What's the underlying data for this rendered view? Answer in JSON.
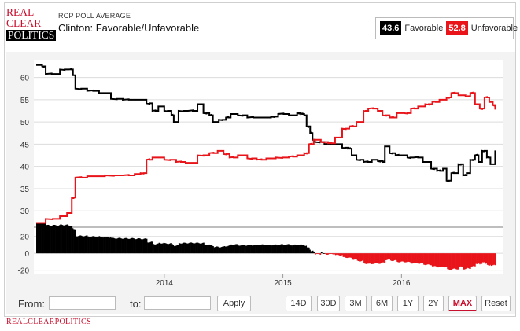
{
  "logo": {
    "line1": "REAL",
    "line2": "CLEAR",
    "line3": "POLITICS"
  },
  "header": {
    "kicker": "RCP POLL AVERAGE",
    "title": "Clinton: Favorable/Unfavorable"
  },
  "legend": {
    "favorable": {
      "value": "43.6",
      "label": "Favorable",
      "color": "#000000"
    },
    "unfavorable": {
      "value": "52.8",
      "label": "Unfavorable",
      "color": "#e8141a"
    }
  },
  "controls": {
    "from_label": "From:",
    "to_label": "to:",
    "apply_label": "Apply",
    "ranges": [
      "14D",
      "30D",
      "3M",
      "6M",
      "1Y",
      "2Y",
      "MAX",
      "Reset"
    ],
    "active_range": "MAX"
  },
  "footer": {
    "text": "REALCLEARPOLITICS"
  },
  "chart_data": {
    "type": "line",
    "x_ticks": [
      "2014",
      "2015",
      "2016"
    ],
    "main_axis": {
      "ticks": [
        30,
        35,
        40,
        45,
        50,
        55,
        60
      ],
      "ylim": [
        26.5,
        64
      ]
    },
    "spread_axis": {
      "ticks": [
        20,
        0,
        -20
      ],
      "ylim": [
        -25,
        30
      ]
    },
    "grid": true,
    "series": [
      {
        "name": "Favorable",
        "color": "#000000",
        "points": [
          [
            2012.92,
            62.8
          ],
          [
            2012.97,
            62.5
          ],
          [
            2013.0,
            60.8
          ],
          [
            2013.1,
            60.8
          ],
          [
            2013.12,
            61.8
          ],
          [
            2013.2,
            61.8
          ],
          [
            2013.23,
            60.5
          ],
          [
            2013.25,
            57.5
          ],
          [
            2013.35,
            57.0
          ],
          [
            2013.45,
            56.5
          ],
          [
            2013.55,
            55.2
          ],
          [
            2013.65,
            55.0
          ],
          [
            2013.75,
            55.0
          ],
          [
            2013.85,
            54.2
          ],
          [
            2013.9,
            52.5
          ],
          [
            2013.95,
            53.5
          ],
          [
            2014.0,
            52.5
          ],
          [
            2014.06,
            51.5
          ],
          [
            2014.08,
            50.0
          ],
          [
            2014.12,
            52.5
          ],
          [
            2014.2,
            52.5
          ],
          [
            2014.28,
            54.0
          ],
          [
            2014.33,
            52.0
          ],
          [
            2014.38,
            51.5
          ],
          [
            2014.41,
            50.0
          ],
          [
            2014.46,
            50.5
          ],
          [
            2014.52,
            51.0
          ],
          [
            2014.56,
            51.8
          ],
          [
            2014.62,
            51.5
          ],
          [
            2014.7,
            51.0
          ],
          [
            2014.8,
            51.0
          ],
          [
            2014.9,
            51.2
          ],
          [
            2014.96,
            51.8
          ],
          [
            2015.05,
            51.5
          ],
          [
            2015.12,
            52.0
          ],
          [
            2015.15,
            51.8
          ],
          [
            2015.18,
            51.5
          ],
          [
            2015.2,
            49.0
          ],
          [
            2015.23,
            47.5
          ],
          [
            2015.25,
            46.0
          ],
          [
            2015.27,
            45.5
          ],
          [
            2015.35,
            45.0
          ],
          [
            2015.45,
            45.0
          ],
          [
            2015.5,
            44.2
          ],
          [
            2015.55,
            44.0
          ],
          [
            2015.58,
            42.5
          ],
          [
            2015.62,
            41.5
          ],
          [
            2015.68,
            41.0
          ],
          [
            2015.75,
            41.5
          ],
          [
            2015.8,
            41.2
          ],
          [
            2015.84,
            41.0
          ],
          [
            2015.86,
            44.5
          ],
          [
            2015.9,
            43.0
          ],
          [
            2015.95,
            42.5
          ],
          [
            2016.0,
            42.5
          ],
          [
            2016.05,
            42.0
          ],
          [
            2016.1,
            42.0
          ],
          [
            2016.18,
            41.0
          ],
          [
            2016.25,
            39.5
          ],
          [
            2016.3,
            39.0
          ],
          [
            2016.35,
            39.5
          ],
          [
            2016.38,
            36.8
          ],
          [
            2016.42,
            38.5
          ],
          [
            2016.46,
            38.5
          ],
          [
            2016.48,
            40.5
          ],
          [
            2016.52,
            38.0
          ],
          [
            2016.55,
            38.5
          ],
          [
            2016.58,
            41.5
          ],
          [
            2016.62,
            42.5
          ],
          [
            2016.65,
            41.0
          ],
          [
            2016.68,
            43.5
          ],
          [
            2016.72,
            42.0
          ],
          [
            2016.75,
            40.5
          ],
          [
            2016.79,
            43.6
          ]
        ]
      },
      {
        "name": "Unfavorable",
        "color": "#e8141a",
        "points": [
          [
            2012.92,
            27.3
          ],
          [
            2013.0,
            28.2
          ],
          [
            2013.12,
            28.8
          ],
          [
            2013.18,
            29.5
          ],
          [
            2013.22,
            33.0
          ],
          [
            2013.25,
            37.5
          ],
          [
            2013.35,
            37.8
          ],
          [
            2013.5,
            38.0
          ],
          [
            2013.65,
            38.0
          ],
          [
            2013.75,
            38.3
          ],
          [
            2013.8,
            38.5
          ],
          [
            2013.85,
            41.5
          ],
          [
            2013.9,
            42.0
          ],
          [
            2014.0,
            41.5
          ],
          [
            2014.1,
            41.0
          ],
          [
            2014.18,
            40.8
          ],
          [
            2014.28,
            42.5
          ],
          [
            2014.38,
            43.0
          ],
          [
            2014.45,
            43.5
          ],
          [
            2014.5,
            42.8
          ],
          [
            2014.55,
            42.0
          ],
          [
            2014.62,
            42.5
          ],
          [
            2014.7,
            41.8
          ],
          [
            2014.78,
            41.5
          ],
          [
            2014.86,
            41.8
          ],
          [
            2014.94,
            42.0
          ],
          [
            2015.05,
            42.2
          ],
          [
            2015.12,
            42.5
          ],
          [
            2015.18,
            43.0
          ],
          [
            2015.22,
            45.0
          ],
          [
            2015.26,
            46.0
          ],
          [
            2015.32,
            45.5
          ],
          [
            2015.38,
            45.2
          ],
          [
            2015.44,
            46.5
          ],
          [
            2015.5,
            48.5
          ],
          [
            2015.56,
            49.0
          ],
          [
            2015.62,
            50.0
          ],
          [
            2015.68,
            52.5
          ],
          [
            2015.72,
            53.0
          ],
          [
            2015.8,
            52.5
          ],
          [
            2015.84,
            51.5
          ],
          [
            2015.9,
            51.0
          ],
          [
            2015.96,
            52.0
          ],
          [
            2016.02,
            52.0
          ],
          [
            2016.08,
            53.0
          ],
          [
            2016.14,
            53.5
          ],
          [
            2016.2,
            54.0
          ],
          [
            2016.26,
            54.5
          ],
          [
            2016.32,
            55.0
          ],
          [
            2016.38,
            55.5
          ],
          [
            2016.42,
            56.5
          ],
          [
            2016.48,
            56.0
          ],
          [
            2016.54,
            55.8
          ],
          [
            2016.58,
            56.5
          ],
          [
            2016.62,
            54.0
          ],
          [
            2016.66,
            53.0
          ],
          [
            2016.7,
            55.5
          ],
          [
            2016.74,
            54.5
          ],
          [
            2016.77,
            53.8
          ],
          [
            2016.79,
            52.8
          ]
        ]
      }
    ],
    "spread": {
      "name": "Spread (Favorable minus Unfavorable)",
      "positive_color": "#000000",
      "negative_color": "#e8141a"
    }
  }
}
